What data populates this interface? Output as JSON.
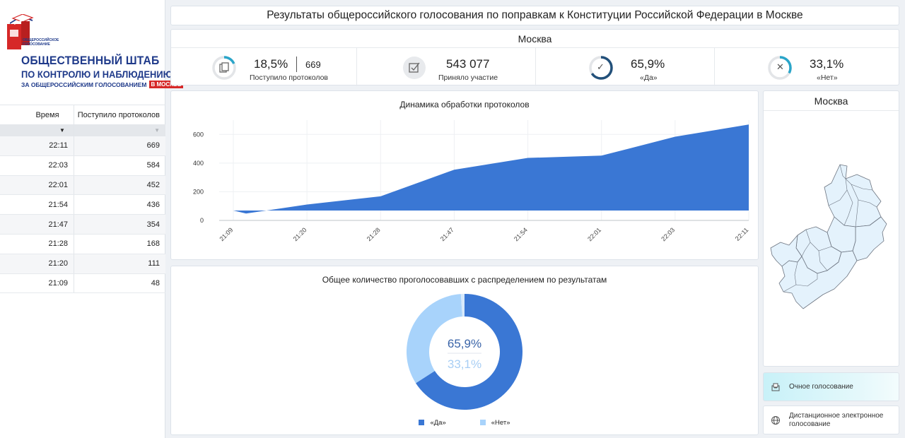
{
  "logo": {
    "small_text": "ОБЩЕРОССИЙСКОЕ ГОЛОСОВАНИЕ",
    "line1": "ОБЩЕСТВЕННЫЙ ШТАБ",
    "line2": "ПО КОНТРОЛЮ И НАБЛЮДЕНИЮ",
    "line3": "ЗА ОБЩЕРОССИЙСКИМ ГОЛОСОВАНИЕМ",
    "badge": "В МОСКВЕ"
  },
  "table": {
    "col_time": "Время",
    "col_protocols": "Поступило протоколов",
    "rows": [
      {
        "time": "22:11",
        "value": "669"
      },
      {
        "time": "22:03",
        "value": "584"
      },
      {
        "time": "22:01",
        "value": "452"
      },
      {
        "time": "21:54",
        "value": "436"
      },
      {
        "time": "21:47",
        "value": "354"
      },
      {
        "time": "21:28",
        "value": "168"
      },
      {
        "time": "21:20",
        "value": "111"
      },
      {
        "time": "21:09",
        "value": "48"
      }
    ]
  },
  "header": {
    "title": "Результаты общероссийского голосования по поправкам к Конституции Российской Федерации в Москве"
  },
  "stats": {
    "region": "Москва",
    "protocols_pct": "18,5%",
    "protocols_count": "669",
    "protocols_label": "Поступило протоколов",
    "participants": "543 077",
    "participants_label": "Приняло участие",
    "yes_pct": "65,9%",
    "yes_label": "«Да»",
    "no_pct": "33,1%",
    "no_label": "«Нет»",
    "protocols_fraction": 0.185,
    "yes_fraction": 0.659,
    "no_fraction": 0.331
  },
  "chart_data": [
    {
      "type": "area",
      "title": "Динамика обработки протоколов",
      "x": [
        "21:09",
        "21:20",
        "21:28",
        "21:47",
        "21:54",
        "22:01",
        "22:03",
        "22:11"
      ],
      "values": [
        48,
        111,
        168,
        354,
        436,
        452,
        584,
        669
      ],
      "yticks": [
        0,
        200,
        400,
        600
      ],
      "ylim": [
        0,
        700
      ],
      "grid": true,
      "color": "#3a77d4"
    },
    {
      "type": "pie",
      "title": "Общее количество проголосовавших с распределением по результатам",
      "categories": [
        "«Да»",
        "«Нет»"
      ],
      "values": [
        65.9,
        33.1
      ],
      "labels": [
        "65,9%",
        "33,1%"
      ],
      "colors": [
        "#3a77d4",
        "#a8d3fb"
      ],
      "legend": "bottom"
    }
  ],
  "map": {
    "title": "Москва"
  },
  "buttons": {
    "in_person": "Очное голосование",
    "remote": "Дистанционное электронное голосование"
  },
  "colors": {
    "accent": "#3a77d4",
    "light_accent": "#a8d3fb",
    "ring_teal": "#2aa5c9",
    "ring_dark": "#22507a",
    "brand_red": "#d62828",
    "brand_blue": "#1f3a8a"
  }
}
